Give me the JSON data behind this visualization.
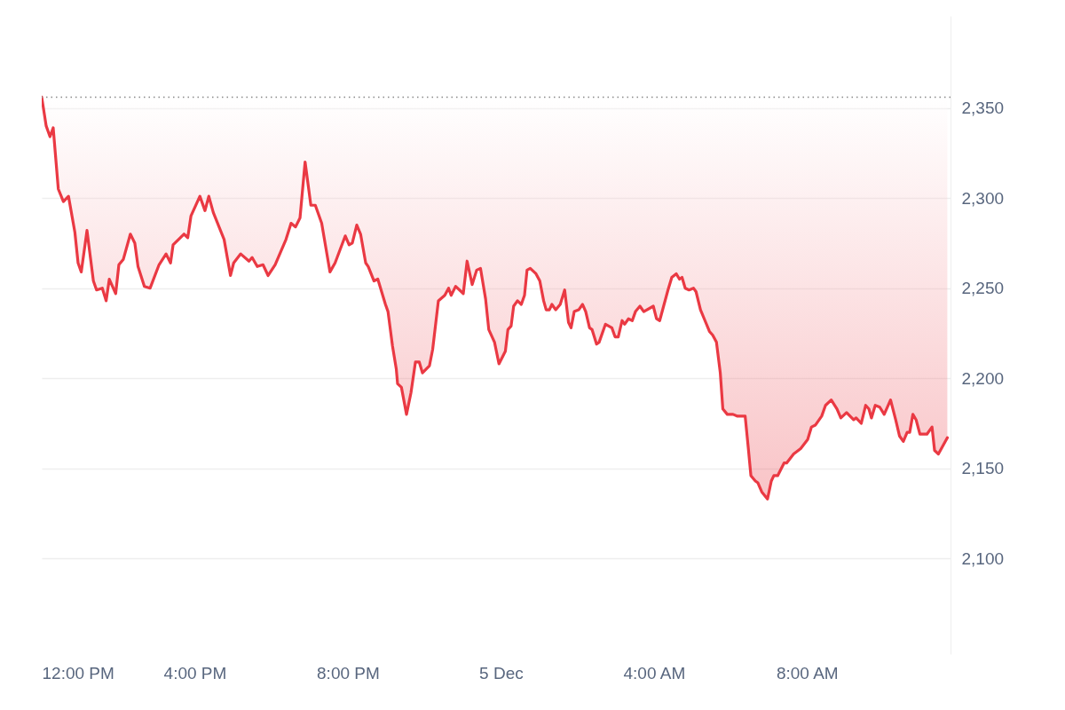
{
  "chart_data": {
    "type": "line",
    "x": [
      "--12-04T12:00",
      "--12-04T12:07",
      "--12-04T12:13",
      "--12-04T12:18",
      "--12-04T12:26",
      "--12-04T12:34",
      "--12-04T12:42",
      "--12-04T12:52",
      "--12-04T12:57",
      "--12-04T13:02",
      "--12-04T13:11",
      "--12-04T13:21",
      "--12-04T13:26",
      "--12-04T13:35",
      "--12-04T13:41",
      "--12-04T13:46",
      "--12-04T13:56",
      "--12-04T14:01",
      "--12-04T14:08",
      "--12-04T14:19",
      "--12-04T14:26",
      "--12-04T14:31",
      "--12-04T14:41",
      "--12-04T14:50",
      "--12-04T15:04",
      "--12-04T15:15",
      "--12-04T15:22",
      "--12-04T15:26",
      "--12-04T15:43",
      "--12-04T15:49",
      "--12-04T15:54",
      "--12-04T16:08",
      "--12-04T16:16",
      "--12-04T16:22",
      "--12-04T16:29",
      "--12-04T16:46",
      "--12-04T16:56",
      "--12-04T17:01",
      "--12-04T17:12",
      "--12-04T17:25",
      "--12-04T17:30",
      "--12-04T17:38",
      "--12-04T17:47",
      "--12-04T17:55",
      "--12-04T18:06",
      "--12-04T18:23",
      "--12-04T18:31",
      "--12-04T18:38",
      "--12-04T18:45",
      "--12-04T18:53",
      "--12-04T19:02",
      "--12-04T19:09",
      "--12-04T19:19",
      "--12-04T19:32",
      "--12-04T19:40",
      "--12-04T19:56",
      "--12-04T20:02",
      "--12-04T20:07",
      "--12-04T20:14",
      "--12-04T20:20",
      "--12-04T20:28",
      "--12-04T20:32",
      "--12-04T20:41",
      "--12-04T20:47",
      "--12-04T20:59",
      "--12-04T21:03",
      "--12-04T21:10",
      "--12-04T21:16",
      "--12-04T21:18",
      "--12-04T21:24",
      "--12-04T21:32",
      "--12-04T21:39",
      "--12-04T21:46",
      "--12-04T21:52",
      "--12-04T21:57",
      "--12-04T22:08",
      "--12-04T22:13",
      "--12-04T22:22",
      "--12-04T22:32",
      "--12-04T22:38",
      "--12-04T22:42",
      "--12-04T22:49",
      "--12-04T23:01",
      "--12-04T23:07",
      "--12-04T23:15",
      "--12-04T23:22",
      "--12-04T23:28",
      "--12-04T23:36",
      "--12-04T23:41",
      "--12-04T23:50",
      "--12-04T23:57",
      "--12-05T00:07",
      "--12-05T00:11",
      "--12-05T00:16",
      "--12-05T00:20",
      "--12-05T00:26",
      "--12-05T00:32",
      "--12-05T00:37",
      "--12-05T00:41",
      "--12-05T00:46",
      "--12-05T00:55",
      "--12-05T01:01",
      "--12-05T01:07",
      "--12-05T01:11",
      "--12-05T01:16",
      "--12-05T01:20",
      "--12-05T01:26",
      "--12-05T01:33",
      "--12-05T01:40",
      "--12-05T01:46",
      "--12-05T01:50",
      "--12-05T01:55",
      "--12-05T02:02",
      "--12-05T02:08",
      "--12-05T02:13",
      "--12-05T02:19",
      "--12-05T02:23",
      "--12-05T02:30",
      "--12-05T02:34",
      "--12-05T02:44",
      "--12-05T02:54",
      "--12-05T02:59",
      "--12-05T03:04",
      "--12-05T03:10",
      "--12-05T03:14",
      "--12-05T03:20",
      "--12-05T03:26",
      "--12-05T03:31",
      "--12-05T03:38",
      "--12-05T03:44",
      "--12-05T03:59",
      "--12-05T04:04",
      "--12-05T04:09",
      "--12-05T04:22",
      "--12-05T04:28",
      "--12-05T04:35",
      "--12-05T04:40",
      "--12-05T04:44",
      "--12-05T04:49",
      "--12-05T04:55",
      "--12-05T05:02",
      "--12-05T05:06",
      "--12-05T05:13",
      "--12-05T05:20",
      "--12-05T05:27",
      "--12-05T05:32",
      "--12-05T05:38",
      "--12-05T05:44",
      "--12-05T05:48",
      "--12-05T05:55",
      "--12-05T06:04",
      "--12-05T06:11",
      "--12-05T06:23",
      "--12-05T06:28",
      "--12-05T06:32",
      "--12-05T06:39",
      "--12-05T06:43",
      "--12-05T06:49",
      "--12-05T06:58",
      "--12-05T07:04",
      "--12-05T07:08",
      "--12-05T07:14",
      "--12-05T07:24",
      "--12-05T07:28",
      "--12-05T07:39",
      "--12-05T07:50",
      "--12-05T08:01",
      "--12-05T08:07",
      "--12-05T08:13",
      "--12-05T08:23",
      "--12-05T08:29",
      "--12-05T08:38",
      "--12-05T08:47",
      "--12-05T08:53",
      "--12-05T09:02",
      "--12-05T09:13",
      "--12-05T09:17",
      "--12-05T09:25",
      "--12-05T09:32",
      "--12-05T09:37",
      "--12-05T09:41",
      "--12-05T09:47",
      "--12-05T09:54",
      "--12-05T10:01",
      "--12-05T10:11",
      "--12-05T10:19",
      "--12-05T10:25",
      "--12-05T10:31",
      "--12-05T10:37",
      "--12-05T10:41",
      "--12-05T10:46",
      "--12-05T10:51",
      "--12-05T10:57",
      "--12-05T11:08",
      "--12-05T11:16",
      "--12-05T11:20",
      "--12-05T11:26",
      "--12-05T11:40"
    ],
    "series": [
      {
        "color": "#ea3943",
        "values": [
          2356,
          2340,
          2334,
          2339,
          2305,
          2298,
          2301,
          2281,
          2264,
          2259,
          2282,
          2254,
          2249,
          2250,
          2243,
          2255,
          2247,
          2263,
          2266,
          2280,
          2275,
          2262,
          2251,
          2250,
          2263,
          2269,
          2264,
          2274,
          2280,
          2278,
          2290,
          2301,
          2293,
          2301,
          2292,
          2277,
          2257,
          2264,
          2269,
          2265,
          2267,
          2262,
          2263,
          2257,
          2263,
          2277,
          2286,
          2284,
          2289,
          2320,
          2296,
          2296,
          2286,
          2259,
          2264,
          2279,
          2274,
          2275,
          2285,
          2280,
          2264,
          2262,
          2254,
          2255,
          2241,
          2237,
          2218,
          2205,
          2197,
          2195,
          2180,
          2192,
          2209,
          2209,
          2203,
          2207,
          2216,
          2243,
          2246,
          2250,
          2246,
          2251,
          2247,
          2265,
          2252,
          2260,
          2261,
          2244,
          2227,
          2220,
          2208,
          2215,
          2227,
          2229,
          2240,
          2243,
          2241,
          2246,
          2260,
          2261,
          2258,
          2254,
          2243,
          2238,
          2238,
          2241,
          2238,
          2241,
          2249,
          2231,
          2228,
          2237,
          2238,
          2241,
          2237,
          2228,
          2227,
          2219,
          2220,
          2230,
          2228,
          2223,
          2223,
          2232,
          2230,
          2233,
          2232,
          2237,
          2240,
          2237,
          2240,
          2233,
          2232,
          2249,
          2256,
          2258,
          2255,
          2256,
          2250,
          2249,
          2250,
          2248,
          2238,
          2232,
          2226,
          2224,
          2220,
          2203,
          2183,
          2180,
          2180,
          2179,
          2179,
          2161,
          2146,
          2143,
          2142,
          2137,
          2133,
          2143,
          2146,
          2146,
          2153,
          2153,
          2158,
          2161,
          2166,
          2173,
          2174,
          2179,
          2185,
          2188,
          2183,
          2178,
          2181,
          2177,
          2178,
          2175,
          2185,
          2183,
          2178,
          2185,
          2184,
          2180,
          2188,
          2177,
          2168,
          2165,
          2170,
          2170,
          2180,
          2177,
          2169,
          2169,
          2173,
          2160,
          2158,
          2167
        ]
      }
    ],
    "xlim": [
      "--12-04T12:00",
      "--12-05T11:45"
    ],
    "xticks": [
      {
        "value": "--12-04T12:00",
        "label": "12:00 PM"
      },
      {
        "value": "--12-04T16:00",
        "label": "4:00 PM"
      },
      {
        "value": "--12-04T20:00",
        "label": "8:00 PM"
      },
      {
        "value": "--12-05T00:00",
        "label": "5 Dec"
      },
      {
        "value": "--12-05T04:00",
        "label": "4:00 AM"
      },
      {
        "value": "--12-05T08:00",
        "label": "8:00 AM"
      }
    ],
    "ylim": [
      2047,
      2401
    ],
    "yticks": [
      {
        "value": 2100,
        "label": "2,100"
      },
      {
        "value": 2150,
        "label": "2,150"
      },
      {
        "value": 2200,
        "label": "2,200"
      },
      {
        "value": 2250,
        "label": "2,250"
      },
      {
        "value": 2300,
        "label": "2,300"
      },
      {
        "value": 2350,
        "label": "2,350"
      }
    ],
    "grid": "y",
    "ref_lines": [
      {
        "axis": "y",
        "value": 2356,
        "color": "#888888",
        "line_style": "dotted"
      }
    ]
  }
}
